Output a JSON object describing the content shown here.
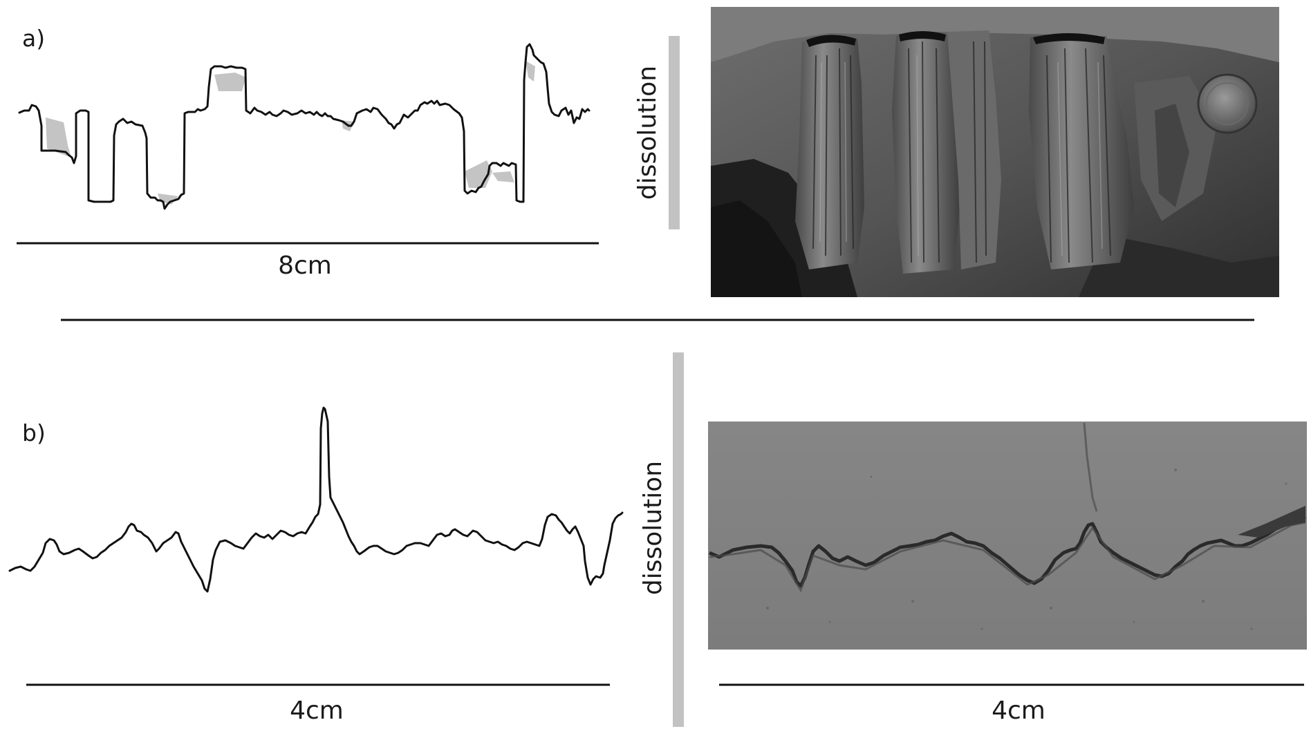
{
  "panel_a": {
    "label": "a)",
    "scale_label": "8cm",
    "vertical_label": "dissolution"
  },
  "panel_b": {
    "label": "b)",
    "scale_label_left": "4cm",
    "scale_label_right": "4cm",
    "vertical_label": "dissolution"
  },
  "colors": {
    "profile": "#111111",
    "dissolution_shade": "#c4c4c4",
    "dissolution_bar": "#c2c2c2",
    "photo_b_background": "#8a8a8a"
  }
}
